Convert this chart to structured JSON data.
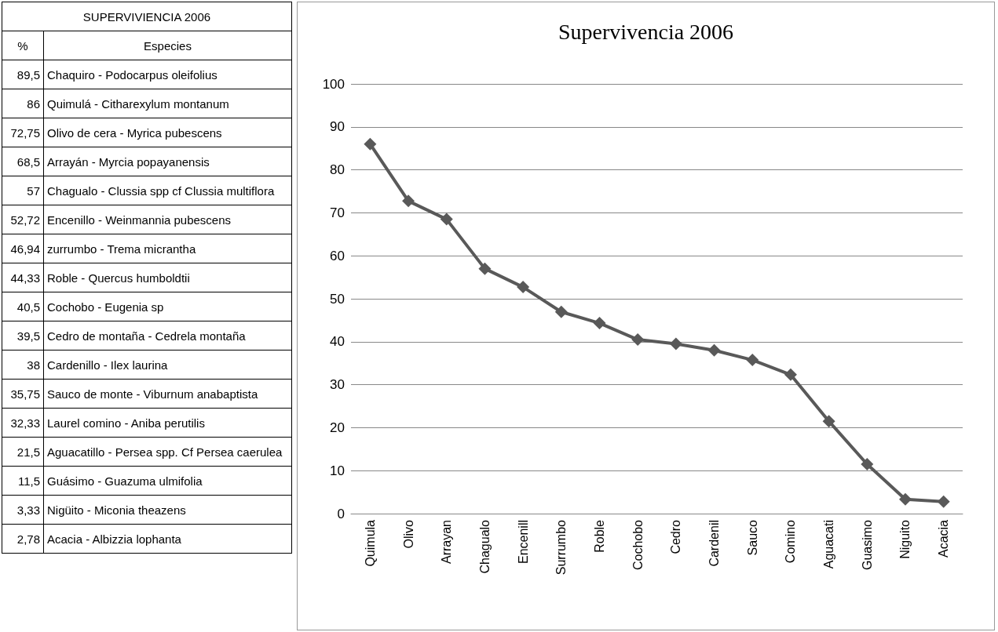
{
  "chart_data": [
    {
      "type": "other",
      "title": "SUPERVIVIENCIA 2006",
      "annotations": [
        "%",
        "Especies",
        "89,5",
        "Chaquiro - Podocarpus oleifolius",
        "86",
        "Quimulá - Citharexylum montanum",
        "72,75",
        "Olivo de cera - Myrica pubescens",
        "68,5",
        "Arrayán - Myrcia popayanensis",
        "57",
        "Chagualo - Clussia spp cf Clussia multiflora",
        "52,72",
        "Encenillo - Weinmannia pubescens",
        "46,94",
        "zurrumbo - Trema micrantha",
        "44,33",
        "Roble - Quercus humboldtii",
        "40,5",
        "Cochobo  - Eugenia sp",
        "39,5",
        "Cedro de montaña - Cedrela montaña",
        "38",
        "Cardenillo - Ilex laurina",
        "35,75",
        "Sauco de monte - Viburnum anabaptista",
        "32,33",
        "Laurel comino - Aniba perutilis",
        "21,5",
        "Aguacatillo - Persea spp. Cf Persea caerulea",
        "11,5",
        "Guásimo - Guazuma ulmifolia",
        "3,33",
        "Nigüito - Miconia theazens",
        "2,78",
        "Acacia - Albizzia lophanta"
      ]
    },
    {
      "type": "line",
      "title": "Supervivencia 2006",
      "categories": [
        "Quimula",
        "Olivo",
        "Arrayan",
        "Chagualo",
        "Encenill",
        "Surrumbo",
        "Roble",
        "Cochobo",
        "Cedro",
        "Cardenil",
        "Sauco",
        "Comino",
        "Aguacati",
        "Guasimo",
        "Niguito",
        "Acacia"
      ],
      "series": [
        {
          "color": "#595959",
          "values": [
            86,
            72.75,
            68.5,
            57,
            52.72,
            46.94,
            44.33,
            40.5,
            39.5,
            38,
            35.75,
            32.33,
            21.5,
            11.5,
            3.33,
            2.78
          ]
        }
      ],
      "ylim": [
        0,
        100
      ],
      "yticks": [
        0,
        10,
        20,
        30,
        40,
        50,
        60,
        70,
        80,
        90,
        100
      ],
      "grid": "y",
      "marker": "diamond",
      "line_style": "solid"
    }
  ]
}
